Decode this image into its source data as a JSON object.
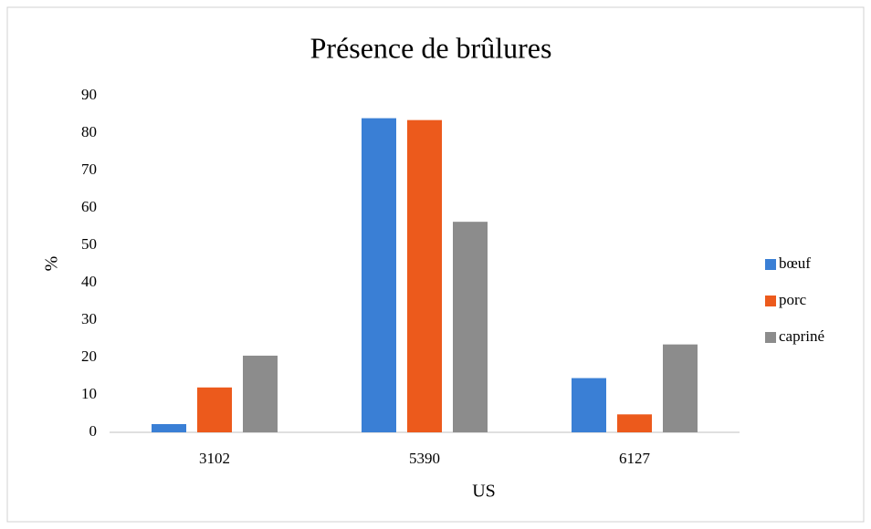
{
  "chart_data": {
    "type": "bar",
    "title": "Présence de brûlures",
    "x_label": "US",
    "y_label": "%",
    "categories": [
      "3102",
      "5390",
      "6127"
    ],
    "series": [
      {
        "name": "bœuf",
        "color": "#3a7fd5",
        "values": [
          2.2,
          84,
          14.5
        ]
      },
      {
        "name": "porc",
        "color": "#ec5a1c",
        "values": [
          12,
          83.5,
          4.8
        ]
      },
      {
        "name": "capriné",
        "color": "#8c8c8c",
        "values": [
          20.5,
          56.3,
          23.5
        ]
      }
    ],
    "ylim": [
      0,
      90
    ],
    "yticks": [
      0,
      10,
      20,
      30,
      40,
      50,
      60,
      70,
      80,
      90
    ],
    "grid": false,
    "legend": "right"
  }
}
